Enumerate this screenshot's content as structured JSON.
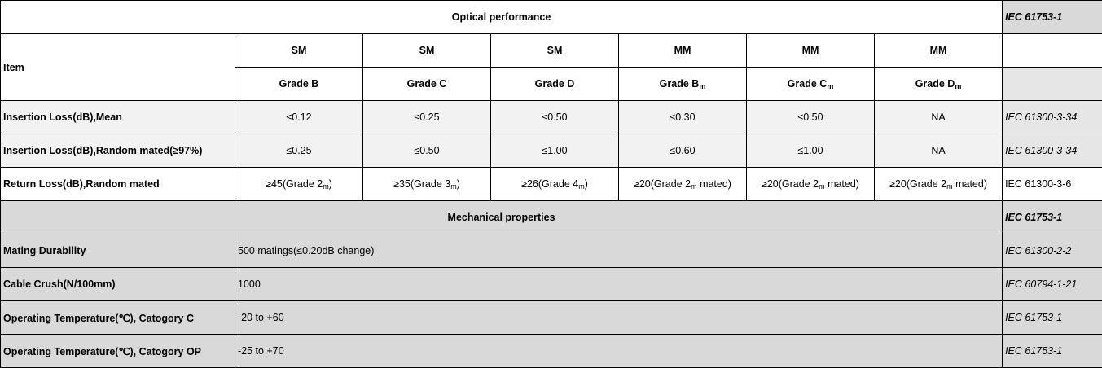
{
  "optical": {
    "title": "Optical performance",
    "standard": "IEC 61753-1",
    "item_label": "Item",
    "columns": [
      {
        "type": "SM",
        "grade": "Grade B",
        "sub": ""
      },
      {
        "type": "SM",
        "grade": "Grade C",
        "sub": ""
      },
      {
        "type": "SM",
        "grade": "Grade D",
        "sub": ""
      },
      {
        "type": "MM",
        "grade": "Grade B",
        "sub": "m"
      },
      {
        "type": "MM",
        "grade": "Grade C",
        "sub": "m"
      },
      {
        "type": "MM",
        "grade": "Grade D",
        "sub": "m"
      }
    ],
    "rows": [
      {
        "label": "Insertion Loss(dB),Mean",
        "values": [
          "≤0.12",
          "≤0.25",
          "≤0.50",
          "≤0.30",
          "≤0.50",
          "NA"
        ],
        "standard": "IEC 61300-3-34"
      },
      {
        "label": "Insertion Loss(dB),Random mated(≥97%)",
        "values": [
          "≤0.25",
          "≤0.50",
          "≤1.00",
          "≤0.60",
          "≤1.00",
          "NA"
        ],
        "standard": "IEC 61300-3-34"
      }
    ],
    "return_loss": {
      "label": "Return Loss(dB),Random mated",
      "values": [
        {
          "pre": "≥45(Grade 2",
          "sub": "m",
          "post": ")"
        },
        {
          "pre": "≥35(Grade 3",
          "sub": "m",
          "post": ")"
        },
        {
          "pre": "≥26(Grade 4",
          "sub": "m",
          "post": ")"
        },
        {
          "pre": "≥20(Grade 2",
          "sub": "m",
          "post": " mated)"
        },
        {
          "pre": "≥20(Grade 2",
          "sub": "m",
          "post": " mated)"
        },
        {
          "pre": "≥20(Grade 2",
          "sub": "m",
          "post": " mated)"
        }
      ],
      "standard": "IEC 61300-3-6"
    }
  },
  "mechanical": {
    "title": "Mechanical properties",
    "standard": "IEC 61753-1",
    "rows": [
      {
        "label": "Mating Durability",
        "value": "500 matings(≤0.20dB change)",
        "standard": "IEC 61300-2-2"
      },
      {
        "label": "Cable Crush(N/100mm)",
        "value": "1000",
        "standard": "IEC 60794-1-21"
      },
      {
        "label": "Operating Temperature(℃), Catogory C",
        "value": "-20 to +60",
        "standard": "IEC 61753-1"
      },
      {
        "label": "Operating Temperature(℃), Catogory OP",
        "value": "-25 to +70",
        "standard": "IEC 61753-1"
      }
    ]
  }
}
